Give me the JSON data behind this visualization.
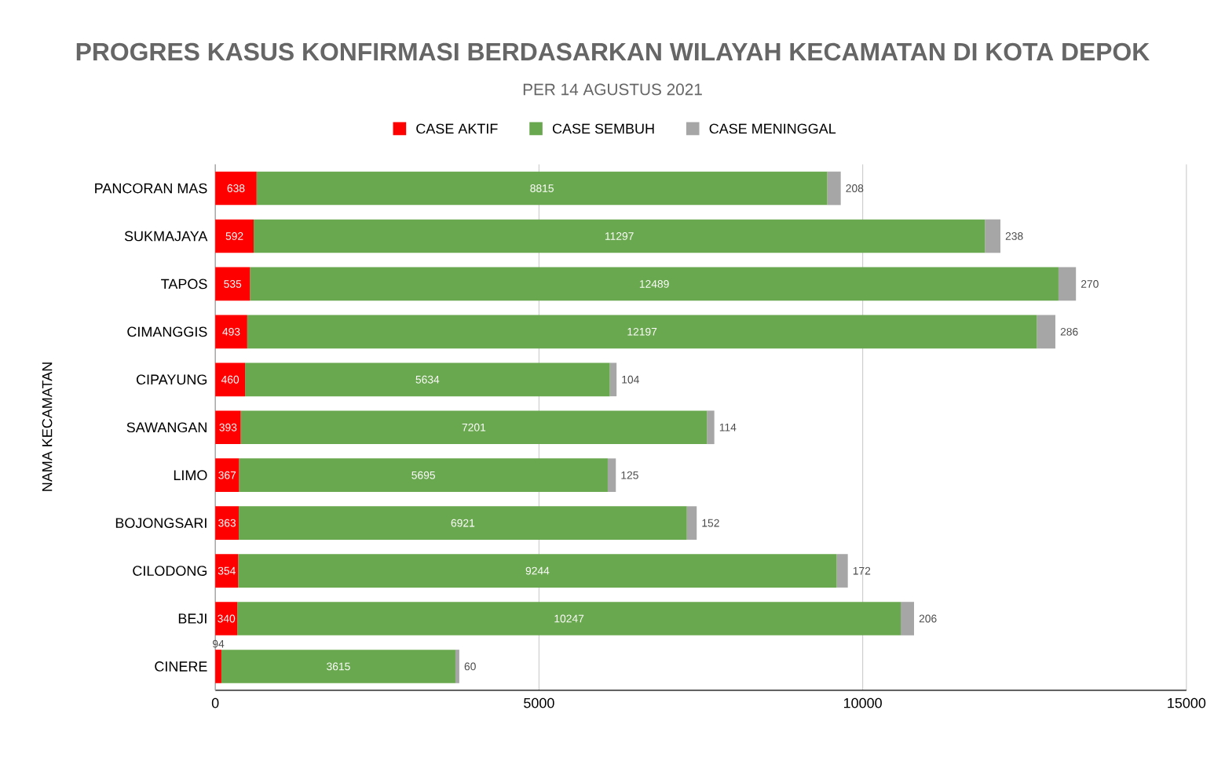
{
  "chart_data": {
    "type": "bar",
    "orientation": "horizontal",
    "stacked": true,
    "title": "PROGRES KASUS KONFIRMASI BERDASARKAN WILAYAH KECAMATAN DI KOTA DEPOK",
    "subtitle": "PER 14 AGUSTUS 2021",
    "ylabel": "NAMA KECAMATAN",
    "categories": [
      "PANCORAN MAS",
      "SUKMAJAYA",
      "TAPOS",
      "CIMANGGIS",
      "CIPAYUNG",
      "SAWANGAN",
      "LIMO",
      "BOJONGSARI",
      "CILODONG",
      "BEJI",
      "CINERE"
    ],
    "series": [
      {
        "name": "CASE AKTIF",
        "color": "#ff0000",
        "values": [
          638,
          592,
          535,
          493,
          460,
          393,
          367,
          363,
          354,
          340,
          94
        ]
      },
      {
        "name": "CASE SEMBUH",
        "color": "#6aa84f",
        "values": [
          8815,
          11297,
          12489,
          12197,
          5634,
          7201,
          5695,
          6921,
          9244,
          10247,
          3615
        ]
      },
      {
        "name": "CASE MENINGGAL",
        "color": "#a6a6a6",
        "values": [
          208,
          238,
          270,
          286,
          104,
          114,
          125,
          152,
          172,
          206,
          60
        ]
      }
    ],
    "xlim": [
      0,
      15000
    ],
    "xticks": [
      0,
      5000,
      10000,
      15000
    ],
    "grid": "x",
    "legend": "top",
    "data_labels": true
  }
}
